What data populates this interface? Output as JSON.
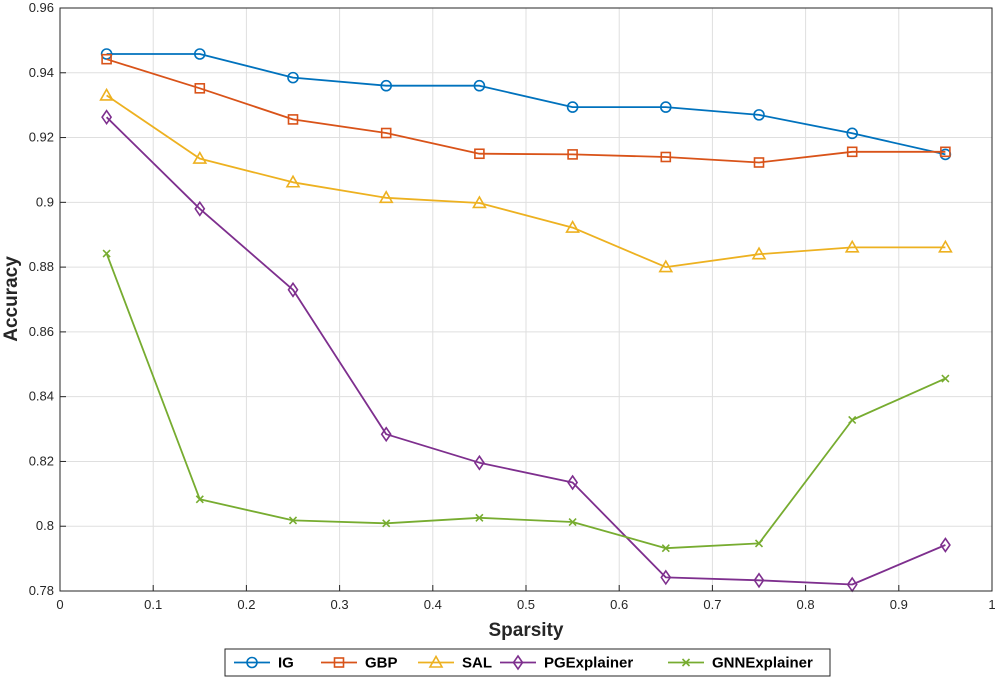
{
  "chart_data": {
    "type": "line",
    "title": "",
    "xlabel": "Sparsity",
    "ylabel": "Accuracy",
    "xlim": [
      0,
      1
    ],
    "ylim": [
      0.78,
      0.96
    ],
    "grid": true,
    "legend_position": "bottom",
    "x_ticks": [
      "0",
      "0.1",
      "0.2",
      "0.3",
      "0.4",
      "0.5",
      "0.6",
      "0.7",
      "0.8",
      "0.9",
      "1"
    ],
    "y_ticks": [
      "0.78",
      "0.8",
      "0.82",
      "0.84",
      "0.86",
      "0.88",
      "0.9",
      "0.92",
      "0.94",
      "0.96"
    ],
    "x": [
      0.05,
      0.15,
      0.25,
      0.35,
      0.45,
      0.55,
      0.65,
      0.75,
      0.85,
      0.95
    ],
    "series": [
      {
        "name": "IG",
        "color": "#0072BD",
        "marker": "circle",
        "values": [
          0.9458,
          0.9458,
          0.9385,
          0.936,
          0.936,
          0.9294,
          0.9294,
          0.927,
          0.9213,
          0.9148
        ]
      },
      {
        "name": "GBP",
        "color": "#D95319",
        "marker": "square",
        "values": [
          0.9442,
          0.9352,
          0.9256,
          0.9214,
          0.915,
          0.9148,
          0.914,
          0.9123,
          0.9156,
          0.9156
        ]
      },
      {
        "name": "SAL",
        "color": "#EDB120",
        "marker": "triangle",
        "values": [
          0.933,
          0.9135,
          0.9062,
          0.9014,
          0.8998,
          0.8922,
          0.88,
          0.884,
          0.8861,
          0.8861
        ]
      },
      {
        "name": "PGExplainer",
        "color": "#7E2F8E",
        "marker": "diamond",
        "values": [
          0.9263,
          0.898,
          0.873,
          0.8284,
          0.8196,
          0.8135,
          0.7842,
          0.7833,
          0.782,
          0.7942
        ]
      },
      {
        "name": "GNNExplainer",
        "color": "#77AC30",
        "marker": "x",
        "values": [
          0.8842,
          0.8083,
          0.8018,
          0.8009,
          0.8026,
          0.8013,
          0.7932,
          0.7947,
          0.8328,
          0.8456
        ]
      }
    ]
  }
}
